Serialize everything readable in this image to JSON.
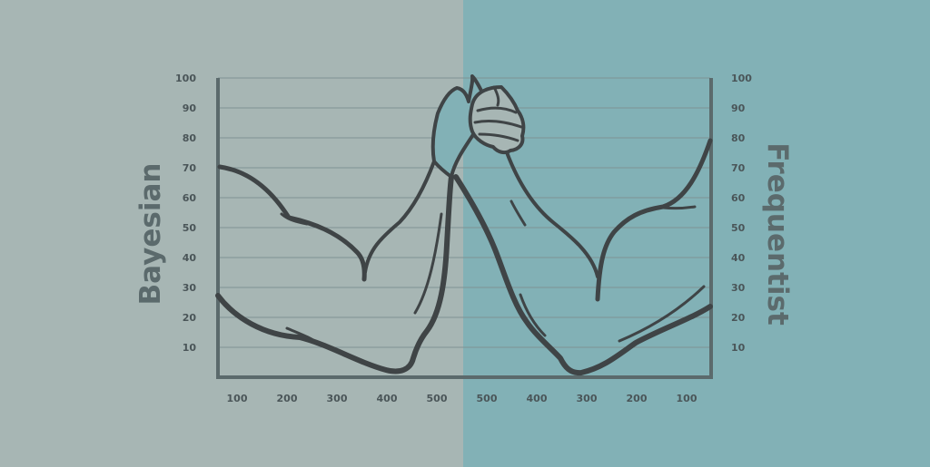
{
  "labels": {
    "left": "Bayesian",
    "right": "Frequentist"
  },
  "y_ticks": [
    "10",
    "20",
    "30",
    "40",
    "50",
    "60",
    "70",
    "80",
    "90",
    "100"
  ],
  "x_ticks_left": [
    "100",
    "200",
    "300",
    "400",
    "500"
  ],
  "x_ticks_right": [
    "500",
    "400",
    "300",
    "200",
    "100"
  ],
  "colors": {
    "left_background": "#a7b6b4",
    "right_background": "#82b1b6",
    "outline": "#3f4446",
    "axis": "#5b6a6c",
    "gridline": "#7f9294"
  }
}
